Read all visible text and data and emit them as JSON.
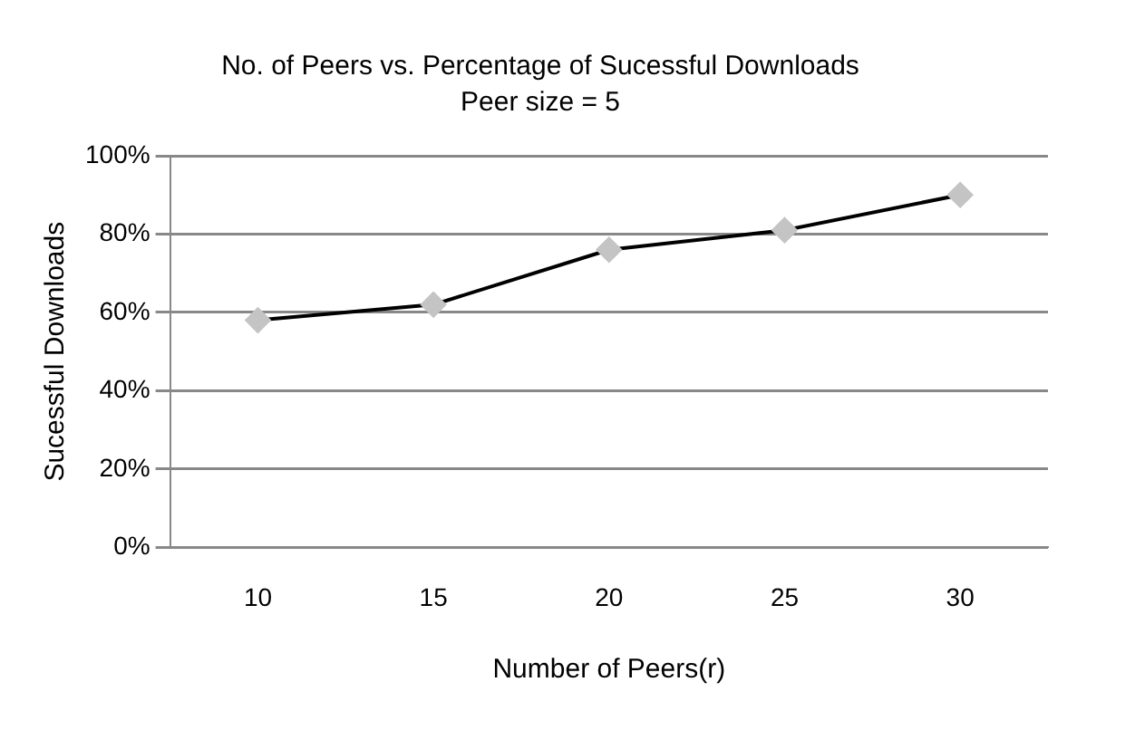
{
  "chart_data": {
    "type": "line",
    "title": "No. of Peers vs. Percentage of Sucessful Downloads",
    "subtitle": "Peer size = 5",
    "xlabel": "Number of Peers(r)",
    "ylabel": "Sucessful Downloads",
    "categories": [
      "10",
      "15",
      "20",
      "25",
      "30"
    ],
    "series": [
      {
        "color": "#000000",
        "values": [
          58,
          62,
          76,
          81,
          90
        ]
      }
    ],
    "marker": "diamond",
    "line_style": "solid",
    "ylim": [
      0,
      100
    ],
    "yticks": [
      {
        "value": 0,
        "label": "0%"
      },
      {
        "value": 20,
        "label": "20%"
      },
      {
        "value": 40,
        "label": "40%"
      },
      {
        "value": 60,
        "label": "60%"
      },
      {
        "value": 80,
        "label": "80%"
      },
      {
        "value": 100,
        "label": "100%"
      }
    ],
    "grid": "y",
    "legend": false
  }
}
